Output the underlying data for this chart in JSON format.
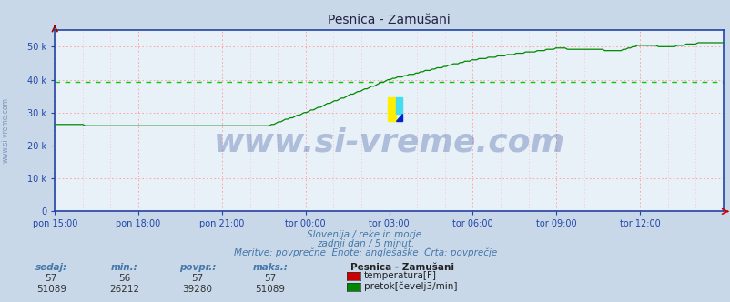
{
  "title": "Pesnica - Zamušani",
  "bg_color": "#c8d8e8",
  "plot_bg_color": "#e8f0f8",
  "grid_color": "#ff9999",
  "grid_linestyle": "dotted",
  "axis_color": "#2244aa",
  "x_labels": [
    "pon 15:00",
    "pon 18:00",
    "pon 21:00",
    "tor 00:00",
    "tor 03:00",
    "tor 06:00",
    "tor 09:00",
    "tor 12:00"
  ],
  "x_ticks_norm": [
    0.0,
    0.125,
    0.25,
    0.375,
    0.5,
    0.625,
    0.75,
    0.875
  ],
  "y_min": 0,
  "y_max": 55000,
  "y_ticks": [
    0,
    10000,
    20000,
    30000,
    40000,
    50000
  ],
  "y_tick_labels": [
    "0",
    "10 k",
    "20 k",
    "30 k",
    "40 k",
    "50 k"
  ],
  "temp_color": "#cc0000",
  "flow_color": "#008800",
  "avg_flow_color": "#00cc00",
  "watermark": "www.si-vreme.com",
  "watermark_color": "#1a3a8a",
  "watermark_alpha": 0.28,
  "watermark_fontsize": 26,
  "subtitle1": "Slovenija / reke in morje.",
  "subtitle2": "zadnji dan / 5 minut.",
  "subtitle3": "Meritve: povprečne  Enote: anglešaške  Črta: povprečje",
  "footer_color": "#4477aa",
  "legend_title": "Pesnica - Zamušani",
  "temp_label": "temperatura[F]",
  "flow_label": "pretok[čevelj3/min]",
  "sedaj_val_temp": 57,
  "min_val_temp": 56,
  "povpr_val_temp": 57,
  "maks_val_temp": 57,
  "sedaj_val_flow": 51089,
  "min_val_flow": 26212,
  "povpr_val_flow": 39280,
  "maks_val_flow": 51089,
  "left_label": "www.si-vreme.com",
  "left_label_color": "#5577aa"
}
